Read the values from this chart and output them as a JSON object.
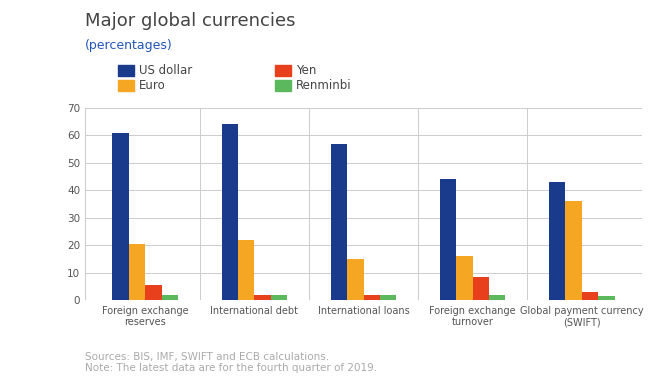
{
  "title": "Major global currencies",
  "subtitle": "(percentages)",
  "categories": [
    "Foreign exchange\nreserves",
    "International debt",
    "International loans",
    "Foreign exchange\nturnover",
    "Global payment currency\n(SWIFT)"
  ],
  "series": {
    "US dollar": [
      61,
      64,
      57,
      44,
      43
    ],
    "Euro": [
      20.5,
      22,
      15,
      16,
      36
    ],
    "Yen": [
      5.5,
      2,
      2,
      8.5,
      3
    ],
    "Renminbi": [
      2,
      2,
      2,
      2,
      1.5
    ]
  },
  "colors": {
    "US dollar": "#1a3a8c",
    "Euro": "#f5a623",
    "Yen": "#e8401c",
    "Renminbi": "#5cb85c"
  },
  "ylim": [
    0,
    70
  ],
  "yticks": [
    0,
    10,
    20,
    30,
    40,
    50,
    60,
    70
  ],
  "title_fontsize": 13,
  "title_color": "#444444",
  "subtitle_color": "#2255bb",
  "subtitle_fontsize": 9,
  "legend_fontsize": 8.5,
  "tick_fontsize": 7.5,
  "xtick_fontsize": 7,
  "note_text": "Sources: BIS, IMF, SWIFT and ECB calculations.\nNote: The latest data are for the fourth quarter of 2019.",
  "note_color": "#aaaaaa",
  "note_fontsize": 7.5,
  "background_color": "#ffffff",
  "grid_color": "#cccccc"
}
